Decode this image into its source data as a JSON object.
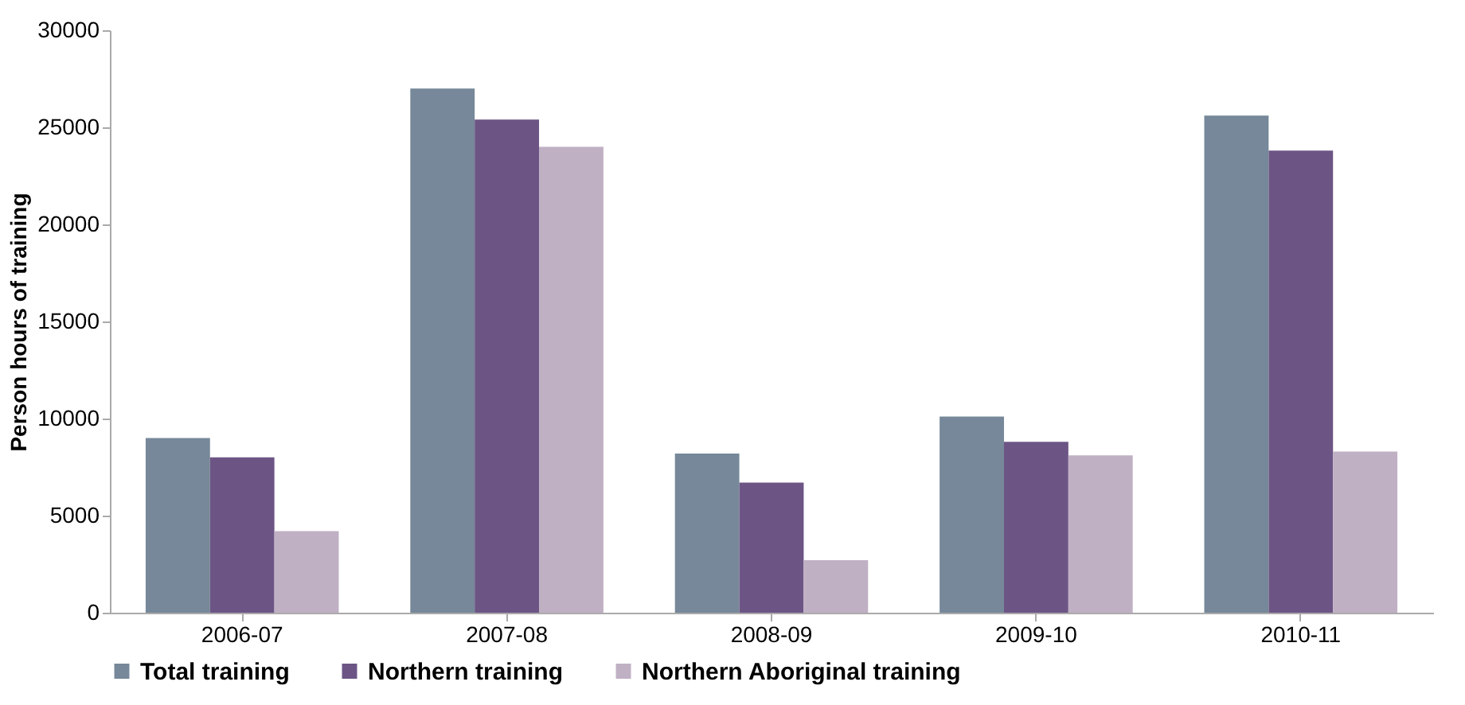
{
  "chart_data": {
    "type": "bar",
    "ylabel": "Person hours of training",
    "categories": [
      "2006-07",
      "2007-08",
      "2008-09",
      "2009-10",
      "2010-11"
    ],
    "series": [
      {
        "name": "Total training",
        "color": "#768899",
        "values": [
          9000,
          27000,
          8200,
          10100,
          25600
        ]
      },
      {
        "name": "Northern training",
        "color": "#6c5585",
        "values": [
          8000,
          25400,
          6700,
          8800,
          23800
        ]
      },
      {
        "name": "Northern Aboriginal training",
        "color": "#c0b0c4",
        "values": [
          4200,
          24000,
          2700,
          8100,
          8300
        ]
      }
    ],
    "ylim": [
      0,
      30000
    ],
    "yticks": [
      0,
      5000,
      10000,
      15000,
      20000,
      25000,
      30000
    ],
    "grid": false,
    "legend": "bottom"
  }
}
